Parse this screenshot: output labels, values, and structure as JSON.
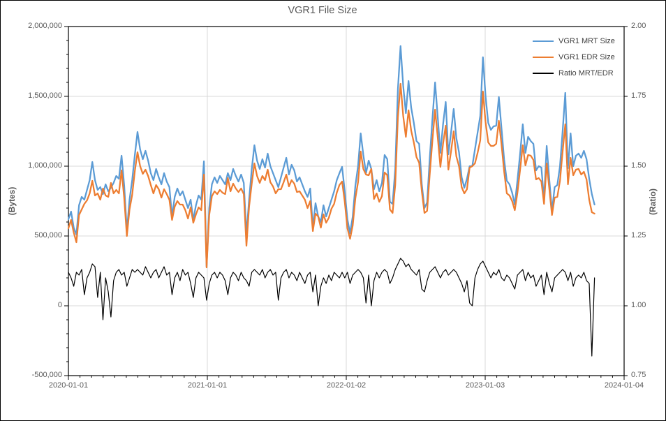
{
  "chart": {
    "title": "VGR1 File Size",
    "y_left": {
      "title": "(Bytes)",
      "tick_labels": [
        "2,000,000",
        "1,500,000",
        "1,000,000",
        "500,000",
        "0",
        "-500,000"
      ]
    },
    "y_right": {
      "title": "(Ratio)",
      "tick_labels": [
        "2.00",
        "1.75",
        "1.50",
        "1.25",
        "1.00",
        "0.75"
      ]
    },
    "x_axis": {
      "tick_labels": [
        "2020-01-01",
        "2021-01-01",
        "2022-01-02",
        "2023-01-03",
        "2024-01-04"
      ]
    },
    "legend": {
      "items": [
        {
          "label": "VGR1 MRT Size",
          "color": "#5B9BD5"
        },
        {
          "label": "VGR1 EDR Size",
          "color": "#ED7D31"
        },
        {
          "label": "Ratio MRT/EDR",
          "color": "#000000"
        }
      ]
    },
    "colors": {
      "gridline": "#D9D9D9",
      "axis_frame": "#000000",
      "text": "#595959",
      "legend_text": "#404040"
    }
  },
  "chart_data": {
    "type": "line",
    "title": "VGR1 File Size",
    "x_start_date": "2020-01-01",
    "x_interval_days": 7,
    "total_weeks": 209.14,
    "x_ticks": [
      {
        "label": "2020-01-01",
        "week": 0
      },
      {
        "label": "2021-01-01",
        "week": 52.29
      },
      {
        "label": "2022-01-02",
        "week": 104.57
      },
      {
        "label": "2023-01-03",
        "week": 156.86
      },
      {
        "label": "2024-01-04",
        "week": 209.14
      }
    ],
    "x_minor_tick_count": 48,
    "y_left": {
      "label": "(Bytes)",
      "min": -500000,
      "max": 2000000,
      "major_step": 500000,
      "minor_step": 100000
    },
    "y_right": {
      "label": "(Ratio)",
      "min": 0.75,
      "max": 2.0,
      "major_step": 0.25
    },
    "grid": true,
    "legend_position": "top-right-inside",
    "series": [
      {
        "name": "VGR1 MRT Size",
        "axis": "left",
        "color": "#5B9BD5",
        "width": 2.25,
        "values": [
          620000,
          675000,
          560000,
          510000,
          720000,
          780000,
          760000,
          830000,
          900000,
          1030000,
          900000,
          830000,
          850000,
          800000,
          870000,
          820000,
          845000,
          880000,
          930000,
          910000,
          1075000,
          860000,
          535000,
          760000,
          900000,
          1080000,
          1245000,
          1120000,
          1050000,
          1110000,
          1040000,
          950000,
          900000,
          980000,
          920000,
          870000,
          950000,
          890000,
          850000,
          640000,
          780000,
          840000,
          790000,
          820000,
          760000,
          700000,
          760000,
          615000,
          720000,
          790000,
          760000,
          1035000,
          280000,
          700000,
          870000,
          920000,
          880000,
          930000,
          900000,
          870000,
          950000,
          900000,
          980000,
          930000,
          890000,
          940000,
          880000,
          510000,
          760000,
          980000,
          1150000,
          1040000,
          980000,
          1050000,
          990000,
          1090000,
          1000000,
          950000,
          900000,
          850000,
          920000,
          990000,
          1060000,
          940000,
          1010000,
          970000,
          890000,
          920000,
          870000,
          820000,
          780000,
          840000,
          560000,
          735000,
          640000,
          600000,
          720000,
          640000,
          700000,
          760000,
          820000,
          900000,
          950000,
          995000,
          820000,
          620000,
          520000,
          640000,
          860000,
          1000000,
          1235000,
          1080000,
          950000,
          1040000,
          980000,
          835000,
          900000,
          820000,
          880000,
          1080000,
          1050000,
          745000,
          730000,
          980000,
          1550000,
          1860000,
          1575000,
          1380000,
          1610000,
          1420000,
          1310000,
          1180000,
          1160000,
          870000,
          700000,
          740000,
          1060000,
          1340000,
          1600000,
          1350000,
          1095000,
          1300000,
          1460000,
          1085000,
          1240000,
          1410000,
          1200000,
          1100000,
          920000,
          845000,
          910000,
          1000000,
          1000000,
          1120000,
          1240000,
          1360000,
          1780000,
          1500000,
          1310000,
          1260000,
          1285000,
          1290000,
          1495000,
          1270000,
          1045000,
          895000,
          870000,
          810000,
          725000,
          900000,
          1090000,
          1300000,
          1095000,
          1210000,
          1180000,
          1160000,
          970000,
          1000000,
          990000,
          760000,
          1145000,
          900000,
          680000,
          850000,
          865000,
          1000000,
          1250000,
          1525000,
          985000,
          1235000,
          1000000,
          1075000,
          1090000,
          1060000,
          1110000,
          1050000,
          910000,
          800000,
          725000
        ]
      },
      {
        "name": "VGR1 EDR Size",
        "axis": "left",
        "color": "#ED7D31",
        "width": 2.25,
        "values": [
          555000,
          615000,
          525000,
          455000,
          650000,
          690000,
          730000,
          755000,
          805000,
          895000,
          790000,
          805000,
          760000,
          840000,
          790000,
          780000,
          880000,
          805000,
          830000,
          805000,
          970000,
          770000,
          500000,
          690000,
          795000,
          965000,
          1100000,
          1000000,
          945000,
          975000,
          930000,
          865000,
          805000,
          865000,
          835000,
          775000,
          835000,
          800000,
          760000,
          615000,
          710000,
          750000,
          725000,
          725000,
          685000,
          625000,
          705000,
          595000,
          655000,
          705000,
          685000,
          940000,
          275000,
          650000,
          785000,
          820000,
          800000,
          830000,
          810000,
          800000,
          915000,
          820000,
          875000,
          840000,
          815000,
          840000,
          800000,
          430000,
          710000,
          875000,
          1020000,
          930000,
          880000,
          930000,
          900000,
          975000,
          885000,
          855000,
          805000,
          835000,
          835000,
          885000,
          940000,
          855000,
          900000,
          875000,
          815000,
          820000,
          790000,
          760000,
          700000,
          750000,
          535000,
          660000,
          640000,
          560000,
          655000,
          595000,
          630000,
          695000,
          730000,
          810000,
          865000,
          890000,
          745000,
          555000,
          480000,
          575000,
          770000,
          885000,
          1105000,
          980000,
          940000,
          935000,
          980000,
          765000,
          805000,
          745000,
          785000,
          955000,
          935000,
          690000,
          665000,
          865000,
          1350000,
          1590000,
          1360000,
          1210000,
          1400000,
          1255000,
          1170000,
          1065000,
          1025000,
          820000,
          665000,
          680000,
          945000,
          1185000,
          1405000,
          1205000,
          995000,
          1160000,
          1290000,
          975000,
          1105000,
          1250000,
          1070000,
          1000000,
          850000,
          805000,
          835000,
          990000,
          1000000,
          1020000,
          1095000,
          1185000,
          1535000,
          1315000,
          1170000,
          1145000,
          1145000,
          1160000,
          1325000,
          1155000,
          960000,
          805000,
          790000,
          750000,
          685000,
          810000,
          975000,
          1150000,
          1005000,
          1080000,
          1075000,
          1045000,
          905000,
          915000,
          890000,
          730000,
          1020000,
          835000,
          650000,
          775000,
          780000,
          895000,
          1105000,
          1300000,
          870000,
          1060000,
          935000,
          975000,
          980000,
          940000,
          960000,
          905000,
          760000,
          670000,
          660000
        ]
      },
      {
        "name": "Ratio MRT/EDR",
        "axis": "right",
        "color": "#000000",
        "width": 1.2,
        "values": [
          1.12,
          1.1,
          1.07,
          1.12,
          1.11,
          1.13,
          1.04,
          1.1,
          1.12,
          1.15,
          1.14,
          1.03,
          1.12,
          0.95,
          1.1,
          1.05,
          0.96,
          1.09,
          1.12,
          1.13,
          1.11,
          1.12,
          1.07,
          1.1,
          1.13,
          1.12,
          1.13,
          1.12,
          1.11,
          1.14,
          1.12,
          1.1,
          1.12,
          1.13,
          1.1,
          1.12,
          1.14,
          1.11,
          1.12,
          1.04,
          1.1,
          1.12,
          1.09,
          1.13,
          1.11,
          1.12,
          1.08,
          1.03,
          1.1,
          1.12,
          1.11,
          1.1,
          1.02,
          1.08,
          1.11,
          1.12,
          1.1,
          1.12,
          1.11,
          1.09,
          1.04,
          1.1,
          1.12,
          1.11,
          1.09,
          1.12,
          1.1,
          1.09,
          1.07,
          1.12,
          1.13,
          1.12,
          1.11,
          1.13,
          1.1,
          1.12,
          1.13,
          1.11,
          1.12,
          1.02,
          1.1,
          1.12,
          1.13,
          1.1,
          1.12,
          1.11,
          1.09,
          1.12,
          1.1,
          1.08,
          1.11,
          1.12,
          1.05,
          1.11,
          1.0,
          1.07,
          1.1,
          1.08,
          1.11,
          1.09,
          1.12,
          1.11,
          1.1,
          1.12,
          1.1,
          1.12,
          1.08,
          1.11,
          1.12,
          1.13,
          1.12,
          1.1,
          1.01,
          1.11,
          1.0,
          1.09,
          1.12,
          1.1,
          1.12,
          1.13,
          1.12,
          1.08,
          1.1,
          1.13,
          1.15,
          1.17,
          1.16,
          1.14,
          1.15,
          1.13,
          1.12,
          1.11,
          1.13,
          1.06,
          1.05,
          1.09,
          1.12,
          1.13,
          1.14,
          1.12,
          1.1,
          1.12,
          1.13,
          1.11,
          1.12,
          1.13,
          1.12,
          1.1,
          1.08,
          1.05,
          1.09,
          1.01,
          1.0,
          1.1,
          1.13,
          1.15,
          1.16,
          1.14,
          1.12,
          1.1,
          1.12,
          1.11,
          1.13,
          1.1,
          1.09,
          1.11,
          1.1,
          1.08,
          1.06,
          1.11,
          1.12,
          1.13,
          1.09,
          1.12,
          1.1,
          1.11,
          1.07,
          1.09,
          1.11,
          1.04,
          1.12,
          1.08,
          1.05,
          1.1,
          1.11,
          1.12,
          1.13,
          1.12,
          1.09,
          1.12,
          1.07,
          1.1,
          1.11,
          1.1,
          1.12,
          1.09,
          1.08,
          0.82,
          1.1
        ]
      }
    ]
  }
}
